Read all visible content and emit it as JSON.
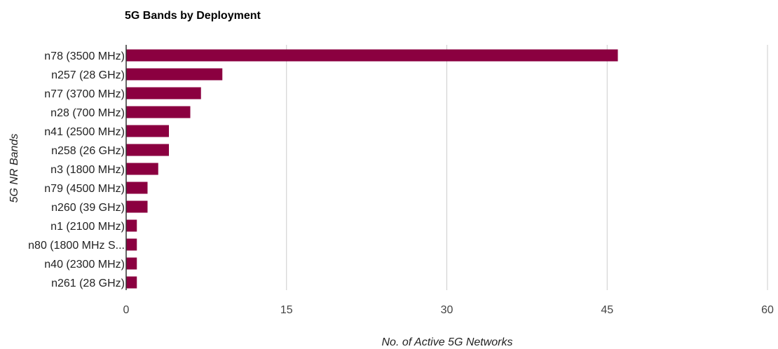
{
  "chart_data": {
    "type": "bar",
    "orientation": "horizontal",
    "title": "5G Bands by Deployment",
    "xlabel": "No. of Active 5G Networks",
    "ylabel": "5G NR Bands",
    "xlim": [
      0,
      60
    ],
    "xticks": [
      0,
      15,
      30,
      45,
      60
    ],
    "grid": true,
    "bar_color": "#8b0040",
    "categories": [
      "n78 (3500 MHz)",
      "n257 (28 GHz)",
      "n77 (3700 MHz)",
      "n28 (700 MHz)",
      "n41 (2500 MHz)",
      "n258 (26 GHz)",
      "n3 (1800 MHz)",
      "n79 (4500 MHz)",
      "n260 (39 GHz)",
      "n1 (2100 MHz)",
      "n80 (1800 MHz S...",
      "n40 (2300 MHz)",
      "n261 (28 GHz)"
    ],
    "values": [
      46,
      9,
      7,
      6,
      4,
      4,
      3,
      2,
      2,
      1,
      1,
      1,
      1
    ]
  }
}
